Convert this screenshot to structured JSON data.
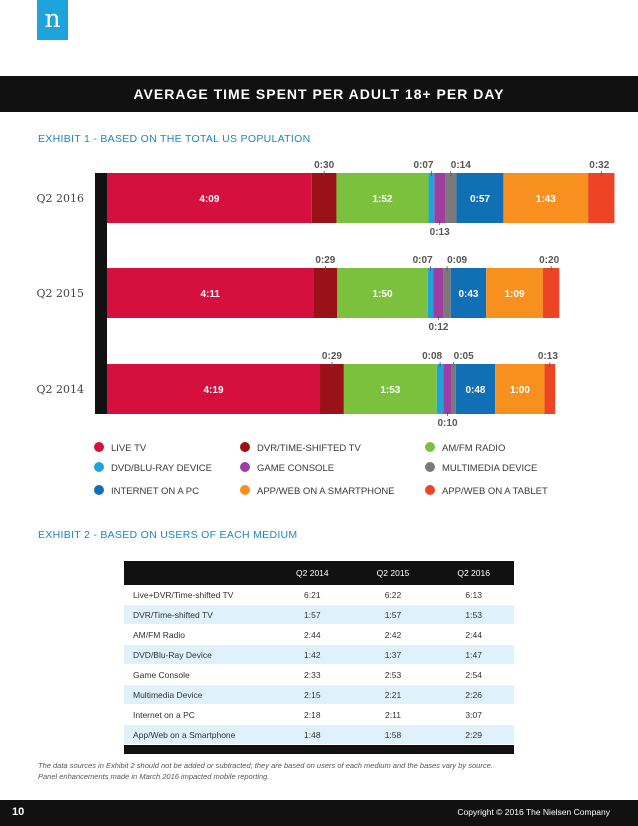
{
  "logo": {
    "letter": "n"
  },
  "banner": {
    "title": "AVERAGE TIME SPENT PER ADULT 18+ PER DAY"
  },
  "exhibit1": {
    "title": "EXHIBIT 1 - BASED ON THE TOTAL US POPULATION"
  },
  "colors": {
    "live_tv": "#d5103f",
    "dvr": "#9a1218",
    "am_fm": "#7cc13e",
    "dvd": "#1fa3dd",
    "game": "#9e3ea2",
    "multimedia": "#7a7a7a",
    "internet": "#116fb5",
    "app_smartphone": "#f7901e",
    "app_tablet": "#ee4426"
  },
  "chart_data": {
    "type": "bar",
    "orientation": "horizontal",
    "stacked": true,
    "unit": "hours:minutes",
    "categories": [
      "Q2 2016",
      "Q2 2015",
      "Q2 2014"
    ],
    "series": [
      {
        "name": "LIVE TV",
        "color_key": "live_tv",
        "labels": [
          "4:09",
          "4:11",
          "4:19"
        ],
        "values": [
          249,
          251,
          259
        ]
      },
      {
        "name": "DVR/TIME-SHIFTED TV",
        "color_key": "dvr",
        "labels": [
          "0:30",
          "0:29",
          "0:29"
        ],
        "values": [
          30,
          29,
          29
        ]
      },
      {
        "name": "AM/FM RADIO",
        "color_key": "am_fm",
        "labels": [
          "1:52",
          "1:50",
          "1:53"
        ],
        "values": [
          112,
          110,
          113
        ]
      },
      {
        "name": "DVD/BLU-RAY DEVICE",
        "color_key": "dvd",
        "labels": [
          "0:07",
          "0:07",
          "0:08"
        ],
        "values": [
          7,
          7,
          8
        ]
      },
      {
        "name": "GAME CONSOLE",
        "color_key": "game",
        "labels": [
          "0:13",
          "0:12",
          "0:10"
        ],
        "values": [
          13,
          12,
          10
        ]
      },
      {
        "name": "MULTIMEDIA DEVICE",
        "color_key": "multimedia",
        "labels": [
          "0:14",
          "0:09",
          "0:05"
        ],
        "values": [
          14,
          9,
          5
        ]
      },
      {
        "name": "INTERNET ON A PC",
        "color_key": "internet",
        "labels": [
          "0:57",
          "0:43",
          "0:48"
        ],
        "values": [
          57,
          43,
          48
        ]
      },
      {
        "name": "APP/WEB ON A SMARTPHONE",
        "color_key": "app_smartphone",
        "labels": [
          "1:43",
          "1:09",
          "1:00"
        ],
        "values": [
          103,
          69,
          60
        ]
      },
      {
        "name": "APP/WEB ON A TABLET",
        "color_key": "app_tablet",
        "labels": [
          "0:32",
          "0:20",
          "0:13"
        ],
        "values": [
          32,
          20,
          13
        ]
      }
    ]
  },
  "exhibit2": {
    "title": "EXHIBIT 2 - BASED ON USERS OF EACH MEDIUM",
    "columns": [
      "",
      "Q2 2014",
      "Q2 2015",
      "Q2 2016"
    ],
    "rows": [
      [
        "Live+DVR/Time-shifted TV",
        "6:21",
        "6:22",
        "6:13"
      ],
      [
        "DVR/Time-shifted TV",
        "1:57",
        "1:57",
        "1:53"
      ],
      [
        "AM/FM Radio",
        "2:44",
        "2:42",
        "2:44"
      ],
      [
        "DVD/Blu-Ray Device",
        "1:42",
        "1:37",
        "1:47"
      ],
      [
        "Game Console",
        "2:33",
        "2:53",
        "2:54"
      ],
      [
        "Multimedia Device",
        "2:15",
        "2:21",
        "2:26"
      ],
      [
        "Internet on a PC",
        "2:18",
        "2:11",
        "3:07"
      ],
      [
        "App/Web on a Smartphone",
        "1:48",
        "1:58",
        "2:29"
      ]
    ]
  },
  "footnote": {
    "line1": "The data sources in Exhibit 2 should not be added or subtracted; they are based on users of each medium and the bases vary by source.",
    "line2": "Panel enhancements made in March 2016 impacted mobile reporting."
  },
  "footer": {
    "page_number": "10",
    "copyright": "Copyright © 2016 The Nielsen Company"
  }
}
